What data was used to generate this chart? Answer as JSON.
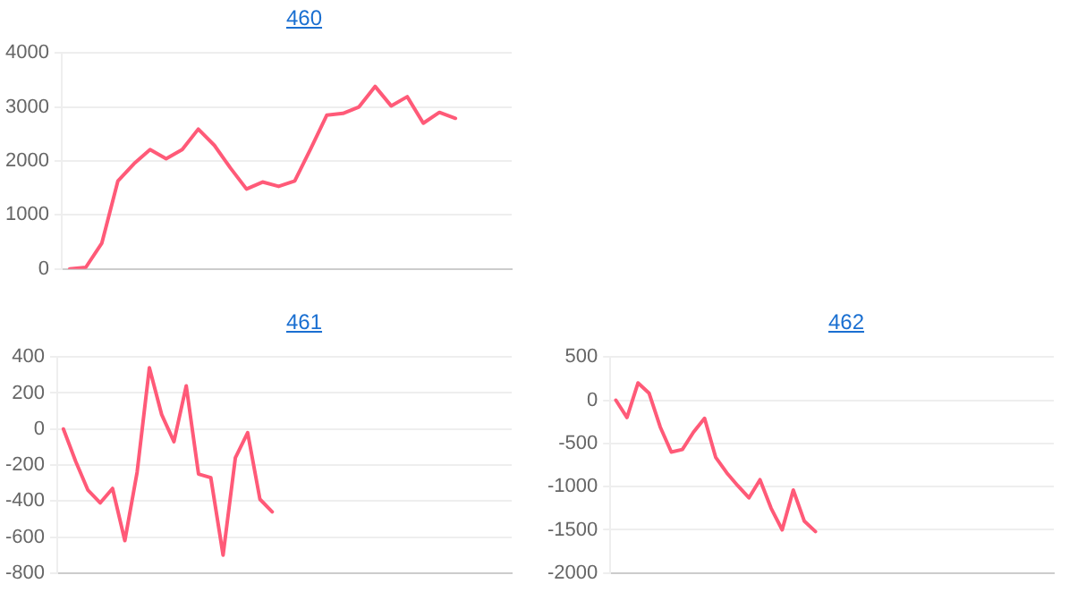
{
  "chart_data": [
    {
      "type": "line",
      "title": "460",
      "categories": [
        null,
        null,
        null,
        null,
        null,
        null,
        null,
        null,
        null,
        null,
        null,
        null,
        null,
        null,
        null,
        null,
        null,
        null,
        null,
        null,
        null,
        null,
        null,
        null,
        null,
        null,
        null,
        null
      ],
      "series": [
        {
          "color": "#ff5a78",
          "values": [
            0,
            30,
            480,
            1630,
            1950,
            2210,
            2040,
            2210,
            2590,
            2290,
            1870,
            1480,
            1610,
            1530,
            1630,
            2230,
            2850,
            2880,
            3000,
            3380,
            3020,
            3190,
            2700,
            2900,
            2790,
            null,
            null,
            null
          ]
        }
      ],
      "ylim": [
        0,
        4000
      ],
      "yticks": [
        0,
        1000,
        2000,
        3000,
        4000
      ],
      "grid": "y",
      "marker": "none"
    },
    {
      "type": "line",
      "title": "461",
      "categories": [
        null,
        null,
        null,
        null,
        null,
        null,
        null,
        null,
        null,
        null,
        null,
        null,
        null,
        null,
        null,
        null,
        null,
        null,
        null,
        null,
        null,
        null,
        null,
        null,
        null,
        null,
        null,
        null,
        null,
        null,
        null,
        null,
        null,
        null,
        null,
        null,
        null
      ],
      "series": [
        {
          "color": "#ff5a78",
          "values": [
            0,
            -180,
            -340,
            -410,
            -330,
            -620,
            -240,
            340,
            80,
            -70,
            240,
            -250,
            -270,
            -700,
            -160,
            -20,
            -390,
            -460,
            null,
            null,
            null,
            null,
            null,
            null,
            null,
            null,
            null,
            null,
            null,
            null,
            null,
            null,
            null,
            null,
            null,
            null,
            null
          ]
        }
      ],
      "ylim": [
        -800,
        400
      ],
      "yticks": [
        -800,
        -600,
        -400,
        -200,
        0,
        200,
        400
      ],
      "grid": "y",
      "marker": "none"
    },
    {
      "type": "line",
      "title": "462",
      "categories": [
        null,
        null,
        null,
        null,
        null,
        null,
        null,
        null,
        null,
        null,
        null,
        null,
        null,
        null,
        null,
        null,
        null,
        null,
        null,
        null,
        null,
        null,
        null,
        null,
        null,
        null,
        null,
        null,
        null,
        null,
        null,
        null,
        null,
        null,
        null,
        null,
        null,
        null,
        null,
        null
      ],
      "series": [
        {
          "color": "#ff5a78",
          "values": [
            0,
            -200,
            200,
            80,
            -310,
            -600,
            -570,
            -370,
            -210,
            -660,
            -840,
            -990,
            -1130,
            -920,
            -1250,
            -1500,
            -1040,
            -1400,
            -1520,
            null,
            null,
            null,
            null,
            null,
            null,
            null,
            null,
            null,
            null,
            null,
            null,
            null,
            null,
            null,
            null,
            null,
            null,
            null,
            null,
            null
          ]
        }
      ],
      "ylim": [
        -2000,
        500
      ],
      "yticks": [
        -2000,
        -1500,
        -1000,
        -500,
        0,
        500
      ],
      "grid": "y",
      "marker": "none"
    }
  ]
}
